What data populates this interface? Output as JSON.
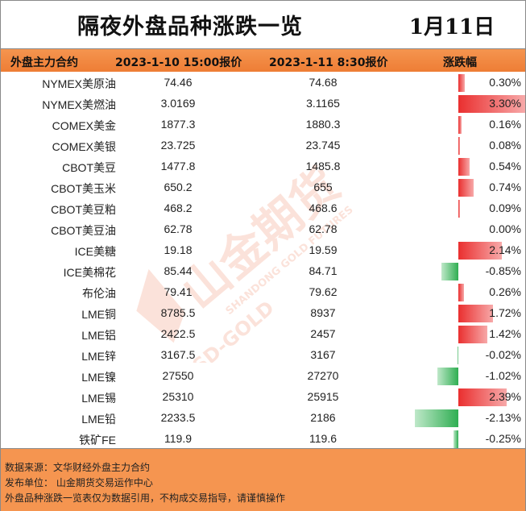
{
  "title": "隔夜外盘品种涨跌一览",
  "date": "1月11日",
  "header": {
    "col_name": "外盘主力合约",
    "col_prev": "2023-1-10 15:00报价",
    "col_curr": "2023-1-11 8:30报价",
    "col_change": "涨跌幅"
  },
  "rows": [
    {
      "name": "NYMEX美原油",
      "prev": "74.46",
      "curr": "74.68",
      "pct": "0.30%",
      "change": 0.3
    },
    {
      "name": "NYMEX美燃油",
      "prev": "3.0169",
      "curr": "3.1165",
      "pct": "3.30%",
      "change": 3.3
    },
    {
      "name": "COMEX美金",
      "prev": "1877.3",
      "curr": "1880.3",
      "pct": "0.16%",
      "change": 0.16
    },
    {
      "name": "COMEX美银",
      "prev": "23.725",
      "curr": "23.745",
      "pct": "0.08%",
      "change": 0.08
    },
    {
      "name": "CBOT美豆",
      "prev": "1477.8",
      "curr": "1485.8",
      "pct": "0.54%",
      "change": 0.54
    },
    {
      "name": "CBOT美玉米",
      "prev": "650.2",
      "curr": "655",
      "pct": "0.74%",
      "change": 0.74
    },
    {
      "name": "CBOT美豆粕",
      "prev": "468.2",
      "curr": "468.6",
      "pct": "0.09%",
      "change": 0.09
    },
    {
      "name": "CBOT美豆油",
      "prev": "62.78",
      "curr": "62.78",
      "pct": "0.00%",
      "change": 0.0
    },
    {
      "name": "ICE美糖",
      "prev": "19.18",
      "curr": "19.59",
      "pct": "2.14%",
      "change": 2.14
    },
    {
      "name": "ICE美棉花",
      "prev": "85.44",
      "curr": "84.71",
      "pct": "-0.85%",
      "change": -0.85
    },
    {
      "name": "布伦油",
      "prev": "79.41",
      "curr": "79.62",
      "pct": "0.26%",
      "change": 0.26
    },
    {
      "name": "LME铜",
      "prev": "8785.5",
      "curr": "8937",
      "pct": "1.72%",
      "change": 1.72
    },
    {
      "name": "LME铝",
      "prev": "2422.5",
      "curr": "2457",
      "pct": "1.42%",
      "change": 1.42
    },
    {
      "name": "LME锌",
      "prev": "3167.5",
      "curr": "3167",
      "pct": "-0.02%",
      "change": -0.02
    },
    {
      "name": "LME镍",
      "prev": "27550",
      "curr": "27270",
      "pct": "-1.02%",
      "change": -1.02
    },
    {
      "name": "LME锡",
      "prev": "25310",
      "curr": "25915",
      "pct": "2.39%",
      "change": 2.39
    },
    {
      "name": "LME铅",
      "prev": "2233.5",
      "curr": "2186",
      "pct": "-2.13%",
      "change": -2.13
    },
    {
      "name": "铁矿FE",
      "prev": "119.9",
      "curr": "119.6",
      "pct": "-0.25%",
      "change": -0.25
    }
  ],
  "footer": {
    "source": "数据来源：文华财经外盘主力合约",
    "publisher": "发布单位：  山金期货交易运作中心",
    "disclaimer": "外盘品种涨跌一览表仅为数据引用，不构成交易指导，请谨慎操作"
  },
  "watermark": {
    "brand": "山金期货",
    "english": "SHANDONG GOLD FUTURES",
    "logo_text": "SD-GOLD"
  },
  "colors": {
    "header_bg": "#ee7d35",
    "footer_bg": "#f59550",
    "up_bar": "#ea2f2f",
    "down_bar": "#2fae52"
  }
}
